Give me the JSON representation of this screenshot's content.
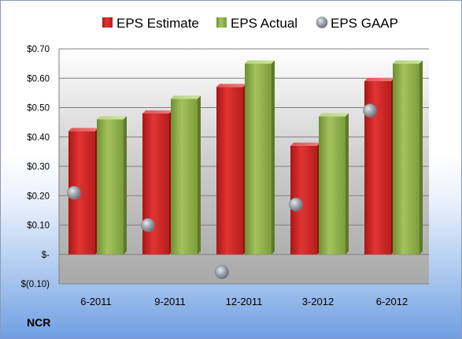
{
  "chart_data": {
    "type": "bar",
    "categories": [
      "6-2011",
      "9-2011",
      "12-2011",
      "3-2012",
      "6-2012"
    ],
    "series": [
      {
        "name": "EPS Estimate",
        "type": "bar",
        "color": "#d42a2a",
        "values": [
          0.42,
          0.48,
          0.57,
          0.37,
          0.59
        ]
      },
      {
        "name": "EPS Actual",
        "type": "bar",
        "color": "#8fb04d",
        "values": [
          0.46,
          0.53,
          0.65,
          0.47,
          0.65
        ]
      },
      {
        "name": "EPS GAAP",
        "type": "scatter",
        "color": "#9ea3ab",
        "values": [
          0.21,
          0.1,
          -0.06,
          0.17,
          0.49
        ]
      }
    ],
    "ylim": [
      -0.1,
      0.7
    ],
    "yticks": [
      -0.1,
      0.0,
      0.1,
      0.2,
      0.3,
      0.4,
      0.5,
      0.6,
      0.7
    ],
    "ytick_labels": [
      "$(0.10)",
      "$-",
      "$0.10",
      "$0.20",
      "$0.30",
      "$0.40",
      "$0.50",
      "$0.60",
      "$0.70"
    ],
    "grid": true,
    "legend_position": "top"
  },
  "company_label": "NCR"
}
